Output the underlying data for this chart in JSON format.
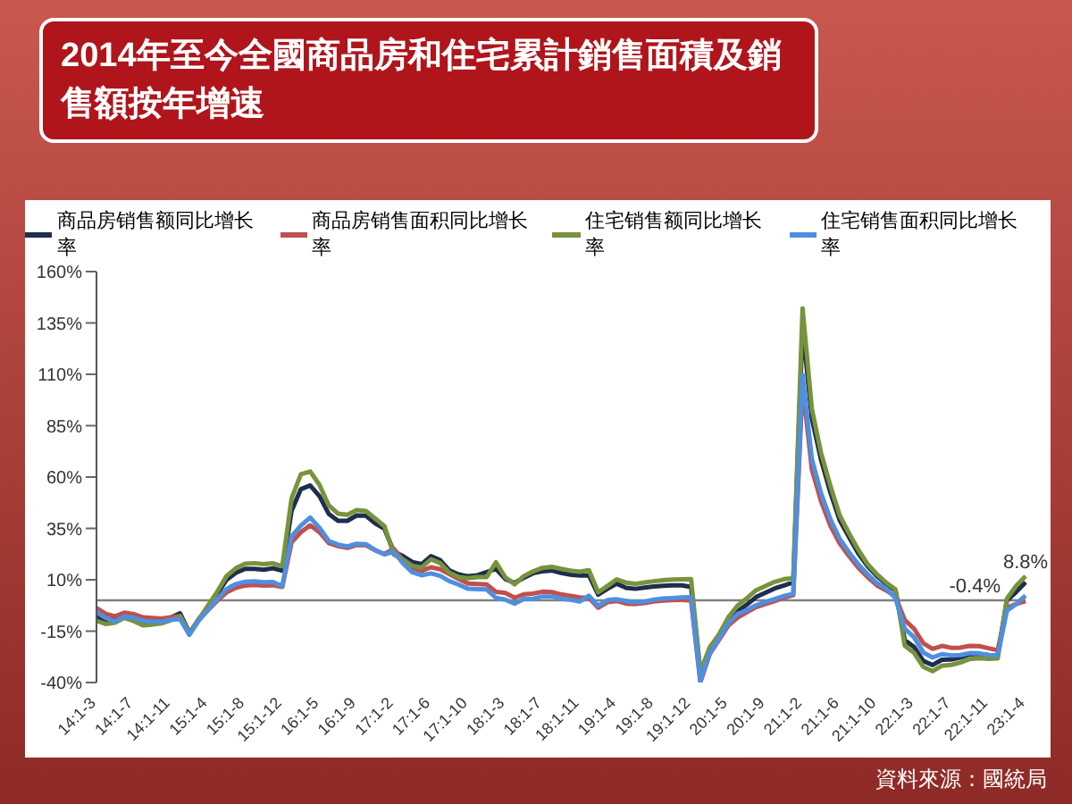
{
  "chart_data": {
    "type": "line",
    "title": "2014年至今全國商品房和住宅累計銷售面積及銷售額按年增速",
    "categories": [
      "14:1-3",
      null,
      null,
      null,
      "14:1-7",
      null,
      null,
      null,
      "14:1-11",
      null,
      null,
      null,
      "15:1-4",
      null,
      null,
      null,
      "15:1-8",
      null,
      null,
      null,
      "15:1-12",
      null,
      null,
      null,
      "16:1-5",
      null,
      null,
      null,
      "16:1-9",
      null,
      null,
      null,
      "17:1-2",
      null,
      null,
      null,
      "17:1-6",
      null,
      null,
      null,
      "17:1-10",
      null,
      null,
      null,
      "18:1-3",
      null,
      null,
      null,
      "18:1-7",
      null,
      null,
      null,
      "18:1-11",
      null,
      null,
      null,
      "19:1-4",
      null,
      null,
      null,
      "19:1-8",
      null,
      null,
      null,
      "19:1-12",
      null,
      null,
      null,
      "20:1-5",
      null,
      null,
      null,
      "20:1-9",
      null,
      null,
      null,
      "21:1-2",
      null,
      null,
      null,
      "21:1-6",
      null,
      null,
      null,
      "21:1-10",
      null,
      null,
      null,
      "22:1-3",
      null,
      null,
      null,
      "22:1-7",
      null,
      null,
      null,
      "22:1-11",
      null,
      null,
      null,
      "23:1-4"
    ],
    "series": [
      {
        "name": "商品房销售额同比增长率",
        "color": "#1f2d4e",
        "values": [
          -7.7,
          -9.9,
          -9.2,
          -6.7,
          -8.6,
          -10.8,
          -10.3,
          -9.9,
          -8.4,
          -6.3,
          -15.8,
          -9.3,
          -3.1,
          3.0,
          10.0,
          13.4,
          15.3,
          15.3,
          14.9,
          15.6,
          14.4,
          43.6,
          54.1,
          55.9,
          50.7,
          42.1,
          38.7,
          38.7,
          41.3,
          41.2,
          37.5,
          34.8,
          23.7,
          21.5,
          18.6,
          17.6,
          21.5,
          19.5,
          14.5,
          12.6,
          11.7,
          12.2,
          13.7,
          15.3,
          10.4,
          8.5,
          11.0,
          13.2,
          14.1,
          14.5,
          13.3,
          12.5,
          12.1,
          12.2,
          2.8,
          5.6,
          8.1,
          6.1,
          5.6,
          6.2,
          6.7,
          7.1,
          7.3,
          7.3,
          6.5,
          -35.9,
          -24.7,
          -18.6,
          -10.6,
          -5.4,
          -2.1,
          1.6,
          3.7,
          5.8,
          7.2,
          8.7,
          133.4,
          88.5,
          68.2,
          52.4,
          38.9,
          30.7,
          22.8,
          16.6,
          11.8,
          8.0,
          4.8,
          -19.3,
          -22.7,
          -29.5,
          -31.5,
          -28.9,
          -28.8,
          -27.9,
          -26.3,
          -26.1,
          -26.6,
          -26.7,
          -0.1,
          4.1,
          8.8
        ]
      },
      {
        "name": "商品房销售面积同比增长率",
        "color": "#c0504d",
        "values": [
          -3.8,
          -6.6,
          -7.8,
          -6.0,
          -6.7,
          -8.3,
          -8.6,
          -8.9,
          -8.2,
          -7.6,
          -16.3,
          -9.2,
          -4.8,
          -0.2,
          3.9,
          6.1,
          7.2,
          7.5,
          7.2,
          7.4,
          6.5,
          28.2,
          33.1,
          36.5,
          33.2,
          27.9,
          26.4,
          25.5,
          26.9,
          26.8,
          24.3,
          22.5,
          25.1,
          19.5,
          15.7,
          14.3,
          16.1,
          15.1,
          12.7,
          10.3,
          8.2,
          7.9,
          7.7,
          4.1,
          3.6,
          1.3,
          2.9,
          3.3,
          4.2,
          4.0,
          2.9,
          2.2,
          1.4,
          1.3,
          -3.6,
          -0.9,
          -0.3,
          -1.6,
          -1.8,
          -1.3,
          -0.6,
          -0.1,
          0.1,
          0.2,
          -0.1,
          -39.9,
          -26.3,
          -19.3,
          -12.3,
          -8.4,
          -5.8,
          -3.3,
          -1.8,
          -0.4,
          1.3,
          2.6,
          104.9,
          63.8,
          48.1,
          36.3,
          27.7,
          21.5,
          15.9,
          11.3,
          7.3,
          4.8,
          1.9,
          -9.6,
          -13.8,
          -20.9,
          -23.6,
          -22.2,
          -23.1,
          -23.0,
          -22.2,
          -22.3,
          -23.3,
          -24.3,
          -3.6,
          -1.8,
          -0.4
        ]
      },
      {
        "name": "住宅销售额同比增长率",
        "color": "#77933c",
        "values": [
          -10.0,
          -11.5,
          -10.9,
          -8.5,
          -10.1,
          -12.2,
          -11.8,
          -11.2,
          -9.7,
          -7.8,
          -16.0,
          -9.4,
          -2.5,
          4.2,
          11.8,
          15.6,
          17.8,
          18.1,
          17.6,
          18.0,
          16.6,
          49.6,
          61.4,
          62.7,
          56.2,
          46.2,
          42.2,
          41.6,
          43.9,
          43.5,
          39.8,
          36.1,
          22.3,
          19.9,
          16.8,
          16.0,
          20.0,
          18.1,
          13.4,
          11.3,
          10.8,
          11.3,
          11.3,
          18.5,
          11.2,
          7.8,
          11.8,
          14.1,
          15.8,
          16.3,
          15.3,
          14.5,
          13.9,
          14.7,
          3.9,
          7.0,
          10.2,
          8.6,
          8.0,
          8.7,
          9.3,
          9.8,
          10.1,
          10.2,
          10.3,
          -34.7,
          -22.9,
          -16.6,
          -8.3,
          -2.6,
          1.0,
          4.9,
          7.0,
          9.0,
          10.3,
          10.8,
          142.1,
          93.2,
          71.6,
          55.6,
          41.3,
          32.6,
          24.6,
          17.6,
          12.7,
          8.6,
          5.3,
          -22.1,
          -25.6,
          -32.4,
          -34.5,
          -31.8,
          -31.4,
          -30.3,
          -28.6,
          -28.2,
          -28.5,
          -28.3,
          0.9,
          7.1,
          11.8
        ]
      },
      {
        "name": "住宅销售面积同比增长率",
        "color": "#4f8fdf",
        "values": [
          -5.7,
          -8.6,
          -10.3,
          -7.8,
          -8.5,
          -10.0,
          -10.3,
          -10.5,
          -9.5,
          -9.1,
          -16.8,
          -9.9,
          -4.7,
          0.6,
          5.5,
          7.9,
          9.0,
          9.2,
          8.8,
          8.9,
          6.9,
          31.1,
          36.4,
          40.3,
          35.3,
          28.9,
          27.1,
          26.2,
          27.5,
          27.3,
          24.5,
          22.4,
          23.7,
          18.0,
          13.6,
          12.2,
          13.1,
          11.9,
          9.3,
          7.6,
          5.6,
          5.4,
          5.3,
          1.2,
          0.3,
          -1.6,
          0.6,
          0.8,
          1.9,
          1.9,
          0.8,
          0.3,
          -0.6,
          2.2,
          -2.7,
          0.1,
          0.5,
          -0.3,
          -1.0,
          -0.6,
          0.3,
          0.9,
          1.1,
          1.4,
          1.5,
          -39.2,
          -25.9,
          -18.7,
          -11.3,
          -6.7,
          -4.8,
          -2.4,
          -0.8,
          0.6,
          2.1,
          3.2,
          109.8,
          68.7,
          51.9,
          39.4,
          29.9,
          23.4,
          17.5,
          12.7,
          8.4,
          5.7,
          1.1,
          -13.8,
          -18.0,
          -25.4,
          -27.8,
          -26.2,
          -26.8,
          -26.6,
          -25.7,
          -25.8,
          -26.6,
          -26.8,
          -5.0,
          -1.8,
          2.3
        ]
      }
    ],
    "ylim": [
      -40,
      160
    ],
    "yticks": [
      {
        "value": -40,
        "label": "-40%"
      },
      {
        "value": -15,
        "label": "-15%"
      },
      {
        "value": 10,
        "label": "10%"
      },
      {
        "value": 35,
        "label": "35%"
      },
      {
        "value": 60,
        "label": "60%"
      },
      {
        "value": 85,
        "label": "85%"
      },
      {
        "value": 110,
        "label": "110%"
      },
      {
        "value": 135,
        "label": "135%"
      },
      {
        "value": 160,
        "label": "160%"
      }
    ],
    "ref_lines": [
      {
        "axis": "y",
        "value": 0,
        "color": "#808080"
      }
    ],
    "annotations": [
      {
        "text": "-0.4%",
        "x": "23:1-4",
        "y": -0.4
      },
      {
        "text": "8.8%",
        "x": "23:1-4",
        "y": 8.8
      },
      "資料來源：國統局"
    ],
    "grid": false,
    "legend": "top",
    "marker": "none",
    "line_style": "solid"
  }
}
